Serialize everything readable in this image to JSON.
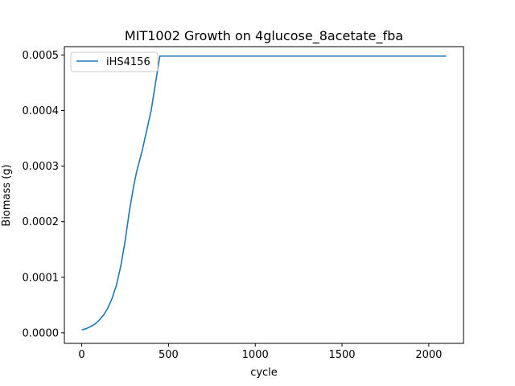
{
  "chart_data": {
    "type": "line",
    "title": "MIT1002 Growth on 4glucose_8acetate_fba",
    "xlabel": "cycle",
    "ylabel": "Biomass (g)",
    "xlim": [
      -100,
      2200
    ],
    "ylim": [
      -1.9e-05,
      0.000515
    ],
    "xticks": [
      0,
      500,
      1000,
      1500,
      2000
    ],
    "xtick_labels": [
      "0",
      "500",
      "1000",
      "1500",
      "2000"
    ],
    "yticks": [
      0.0,
      0.0001,
      0.0002,
      0.0003,
      0.0004,
      0.0005
    ],
    "ytick_labels": [
      "0.0000",
      "0.0001",
      "0.0002",
      "0.0003",
      "0.0004",
      "0.0005"
    ],
    "grid": false,
    "legend": "upper left",
    "series_color": "#1f77b4",
    "series": [
      {
        "name": "iHS4156",
        "x": [
          0,
          25,
          50,
          75,
          100,
          125,
          150,
          175,
          200,
          225,
          250,
          275,
          300,
          315,
          350,
          400,
          450,
          2100
        ],
        "y": [
          5e-06,
          7.5e-06,
          1.1e-05,
          1.55e-05,
          2.25e-05,
          3.15e-05,
          4.45e-05,
          6.2e-05,
          8.6e-05,
          0.00012,
          0.000165,
          0.00022,
          0.000265,
          0.000288,
          0.00033,
          0.0004,
          0.000498,
          0.000498
        ]
      }
    ]
  }
}
